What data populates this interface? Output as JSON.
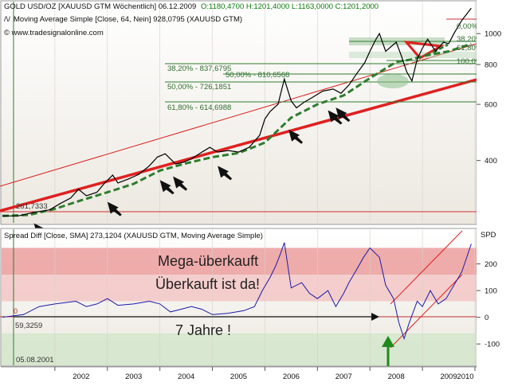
{
  "chart_data": [
    {
      "type": "line",
      "header": {
        "symbol": "GOLD USD/OZ [XAUUSD GTM  Wöchentlich] 06.12.2009",
        "quote": "O:1180,4700 H:1201,4000 L:1163,0000 C:1201,2000",
        "ma_label": "Moving Average Simple [Close, 64, Nein] 928,0795 (XAUUSD GTM)",
        "watermark": "© www.tradesignalonline.com"
      },
      "y_ticks": [
        {
          "label": "1000",
          "value": 1000
        },
        {
          "label": "800",
          "value": 800
        },
        {
          "label": "600",
          "value": 600
        },
        {
          "label": "400",
          "value": 400
        }
      ],
      "ylim": [
        255,
        1260
      ],
      "xlim": [
        2001.0,
        2010.0
      ],
      "series": [
        {
          "values": [
            [
              2001.0,
              268
            ],
            [
              2001.3,
              268
            ],
            [
              2001.6,
              275
            ],
            [
              2001.9,
              280
            ],
            [
              2002.1,
              293
            ],
            [
              2002.3,
              305
            ],
            [
              2002.45,
              325
            ],
            [
              2002.6,
              310
            ],
            [
              2002.8,
              318
            ],
            [
              2002.95,
              340
            ],
            [
              2003.1,
              360
            ],
            [
              2003.2,
              340
            ],
            [
              2003.4,
              350
            ],
            [
              2003.6,
              362
            ],
            [
              2003.8,
              385
            ],
            [
              2003.95,
              410
            ],
            [
              2004.1,
              420
            ],
            [
              2004.3,
              390
            ],
            [
              2004.45,
              395
            ],
            [
              2004.6,
              405
            ],
            [
              2004.8,
              425
            ],
            [
              2004.95,
              440
            ],
            [
              2005.1,
              425
            ],
            [
              2005.3,
              430
            ],
            [
              2005.5,
              425
            ],
            [
              2005.7,
              440
            ],
            [
              2005.9,
              480
            ],
            [
              2006.0,
              540
            ],
            [
              2006.1,
              570
            ],
            [
              2006.25,
              600
            ],
            [
              2006.37,
              720
            ],
            [
              2006.5,
              615
            ],
            [
              2006.6,
              585
            ],
            [
              2006.75,
              610
            ],
            [
              2006.9,
              630
            ],
            [
              2007.1,
              660
            ],
            [
              2007.3,
              670
            ],
            [
              2007.45,
              650
            ],
            [
              2007.6,
              690
            ],
            [
              2007.75,
              750
            ],
            [
              2007.9,
              810
            ],
            [
              2008.0,
              880
            ],
            [
              2008.1,
              950
            ],
            [
              2008.18,
              1000
            ],
            [
              2008.3,
              880
            ],
            [
              2008.5,
              940
            ],
            [
              2008.6,
              850
            ],
            [
              2008.7,
              760
            ],
            [
              2008.8,
              710
            ],
            [
              2008.9,
              830
            ],
            [
              2009.0,
              900
            ],
            [
              2009.1,
              960
            ],
            [
              2009.25,
              880
            ],
            [
              2009.4,
              940
            ],
            [
              2009.5,
              930
            ],
            [
              2009.6,
              1000
            ],
            [
              2009.75,
              1100
            ],
            [
              2009.93,
              1201
            ]
          ]
        },
        {
          "values": [
            [
              2001.0,
              268
            ],
            [
              2001.5,
              270
            ],
            [
              2002.0,
              282
            ],
            [
              2002.5,
              300
            ],
            [
              2003.0,
              318
            ],
            [
              2003.5,
              338
            ],
            [
              2004.0,
              372
            ],
            [
              2004.5,
              392
            ],
            [
              2005.0,
              410
            ],
            [
              2005.5,
              422
            ],
            [
              2006.0,
              455
            ],
            [
              2006.5,
              545
            ],
            [
              2007.0,
              600
            ],
            [
              2007.5,
              640
            ],
            [
              2008.0,
              725
            ],
            [
              2008.5,
              815
            ],
            [
              2008.8,
              830
            ],
            [
              2009.0,
              850
            ],
            [
              2009.5,
              880
            ],
            [
              2009.93,
              928
            ]
          ]
        }
      ],
      "fib_labels": [
        {
          "label": "38,20% - 837,6795",
          "value": 837.68
        },
        {
          "label": "50,00% - 810,6568",
          "value": 810.66
        },
        {
          "label": "50,00% - 726,1851",
          "value": 726.19
        },
        {
          "label": "61,80% - 614,6988",
          "value": 614.7
        }
      ],
      "right_labels": [
        "0,00%",
        "38,20%",
        "61,80%",
        "100,0%"
      ],
      "box_label": "261,7333",
      "arrows": [
        2001.6,
        2003.0,
        2004.0,
        2004.25,
        2005.1,
        2006.45,
        2007.2,
        2007.35
      ]
    },
    {
      "type": "line",
      "header": "Spread Diff [Close, SMA] 273,1204 (XAUUSD GTM, Moving Average Simple)",
      "unit_label": "SPD",
      "y_ticks": [
        {
          "label": "200",
          "value": 200
        },
        {
          "label": "100",
          "value": 100
        },
        {
          "label": "0",
          "value": 0
        },
        {
          "label": "-100",
          "value": -100
        }
      ],
      "ylim": [
        -180,
        330
      ],
      "xlim": [
        2001.0,
        2010.0
      ],
      "values": [
        [
          2001.0,
          0
        ],
        [
          2001.4,
          10
        ],
        [
          2001.7,
          40
        ],
        [
          2002.0,
          50
        ],
        [
          2002.4,
          60
        ],
        [
          2002.6,
          40
        ],
        [
          2002.8,
          50
        ],
        [
          2003.0,
          70
        ],
        [
          2003.2,
          45
        ],
        [
          2003.5,
          50
        ],
        [
          2003.8,
          60
        ],
        [
          2004.0,
          50
        ],
        [
          2004.2,
          20
        ],
        [
          2004.4,
          30
        ],
        [
          2004.6,
          40
        ],
        [
          2004.8,
          30
        ],
        [
          2005.0,
          10
        ],
        [
          2005.3,
          15
        ],
        [
          2005.6,
          25
        ],
        [
          2005.8,
          40
        ],
        [
          2005.95,
          100
        ],
        [
          2006.1,
          150
        ],
        [
          2006.2,
          190
        ],
        [
          2006.3,
          240
        ],
        [
          2006.37,
          280
        ],
        [
          2006.5,
          110
        ],
        [
          2006.7,
          130
        ],
        [
          2006.85,
          90
        ],
        [
          2007.0,
          70
        ],
        [
          2007.2,
          100
        ],
        [
          2007.35,
          40
        ],
        [
          2007.5,
          90
        ],
        [
          2007.6,
          130
        ],
        [
          2007.75,
          180
        ],
        [
          2007.88,
          225
        ],
        [
          2008.0,
          260
        ],
        [
          2008.18,
          225
        ],
        [
          2008.3,
          120
        ],
        [
          2008.45,
          70
        ],
        [
          2008.55,
          -20
        ],
        [
          2008.65,
          -80
        ],
        [
          2008.75,
          -20
        ],
        [
          2008.9,
          60
        ],
        [
          2009.0,
          40
        ],
        [
          2009.15,
          100
        ],
        [
          2009.3,
          50
        ],
        [
          2009.45,
          70
        ],
        [
          2009.6,
          120
        ],
        [
          2009.75,
          170
        ],
        [
          2009.93,
          275
        ]
      ],
      "zones": [
        {
          "from": 160,
          "to": 260,
          "color": "#e88a8a"
        },
        {
          "from": 60,
          "to": 160,
          "color": "#f2bcbc"
        },
        {
          "from": -180,
          "to": -60,
          "color": "#cfe6c8"
        }
      ],
      "ref_labels": [
        "0",
        "59,3259",
        "05.08.2001"
      ],
      "annotations": [
        "Mega-überkauft",
        "Überkauft ist da!",
        "7 Jahre !"
      ]
    }
  ],
  "x_ticks": [
    "2002",
    "2003",
    "2004",
    "2005",
    "2006",
    "2007",
    "2008",
    "2009",
    "2010"
  ],
  "colors": {
    "price": "#000000",
    "ma": "#2d7d2d",
    "support": "#e02020",
    "spread": "#1a1aa8",
    "annotation_arrow": "#1e8a1e"
  }
}
